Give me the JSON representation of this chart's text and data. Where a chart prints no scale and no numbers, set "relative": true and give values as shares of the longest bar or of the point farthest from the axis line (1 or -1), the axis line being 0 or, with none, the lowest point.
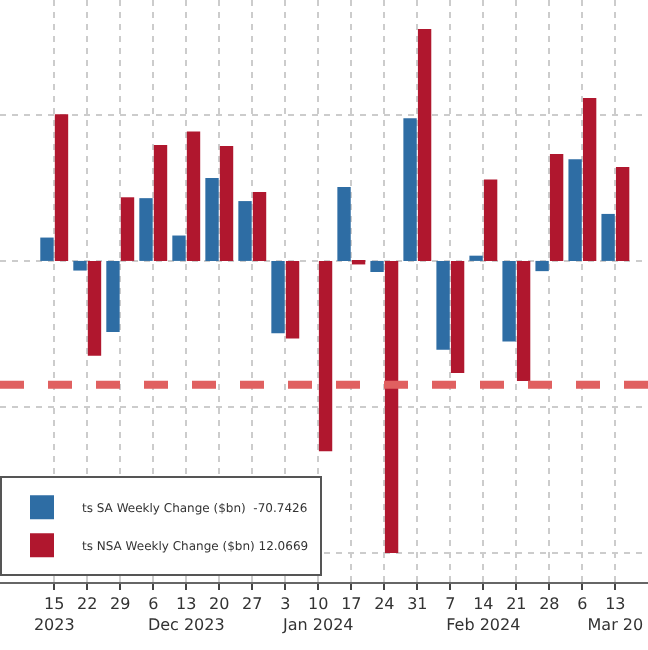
{
  "chart_data": {
    "type": "bar",
    "relative": true,
    "x": [
      "2023-11-15",
      "2023-11-22",
      "2023-11-29",
      "2023-12-06",
      "2023-12-13",
      "2023-12-20",
      "2023-12-27",
      "2024-01-03",
      "2024-01-10",
      "2024-01-17",
      "2024-01-24",
      "2024-01-31",
      "2024-02-07",
      "2024-02-14",
      "2024-02-21",
      "2024-02-28",
      "2024-03-06",
      "2024-03-13"
    ],
    "xlim": [
      "2023-11-03T12:00",
      "2024-03-19T22:00"
    ],
    "xticks": [
      {
        "value": "2023-11-15",
        "label": "15\n2023"
      },
      {
        "value": "2023-11-22",
        "label": "22"
      },
      {
        "value": "2023-11-29",
        "label": "29"
      },
      {
        "value": "2023-12-06",
        "label": "6"
      },
      {
        "value": "2023-12-13",
        "label": "13\nDec 2023"
      },
      {
        "value": "2023-12-20",
        "label": "20"
      },
      {
        "value": "2023-12-27",
        "label": "27"
      },
      {
        "value": "2024-01-03",
        "label": "3"
      },
      {
        "value": "2024-01-10",
        "label": "10\nJan 2024"
      },
      {
        "value": "2024-01-17",
        "label": "17"
      },
      {
        "value": "2024-01-24",
        "label": "24"
      },
      {
        "value": "2024-01-31",
        "label": "31"
      },
      {
        "value": "2024-02-07",
        "label": "7"
      },
      {
        "value": "2024-02-14",
        "label": "14\nFeb 2024"
      },
      {
        "value": "2024-02-21",
        "label": "21"
      },
      {
        "value": "2024-02-28",
        "label": "28"
      },
      {
        "value": "2024-03-06",
        "label": "6"
      },
      {
        "value": "2024-03-13",
        "label": "13\nMar 20"
      }
    ],
    "series": [
      {
        "name": "ts SA Weekly Change ($bn)  -70.7426",
        "color": "#2e6da4",
        "values": [
          0.08,
          -0.033,
          -0.243,
          0.215,
          0.087,
          0.284,
          0.205,
          -0.248,
          0.0,
          0.253,
          -0.038,
          0.489,
          -0.304,
          0.018,
          -0.276,
          -0.035,
          0.348,
          0.161
        ]
      },
      {
        "name": "ts NSA Weekly Change ($bn) 12.0669",
        "color": "#b0172e",
        "values": [
          0.502,
          -0.325,
          0.218,
          0.397,
          0.443,
          0.394,
          0.236,
          -0.266,
          -0.652,
          -0.012,
          -1,
          0.794,
          -0.384,
          0.279,
          -0.411,
          0.366,
          0.558,
          0.322
        ]
      }
    ],
    "ref_lines": [
      {
        "axis": "y",
        "value": -0.424,
        "color": "#e06060",
        "line_style": "dashed"
      }
    ],
    "grid": true,
    "legend": "bottom left"
  }
}
